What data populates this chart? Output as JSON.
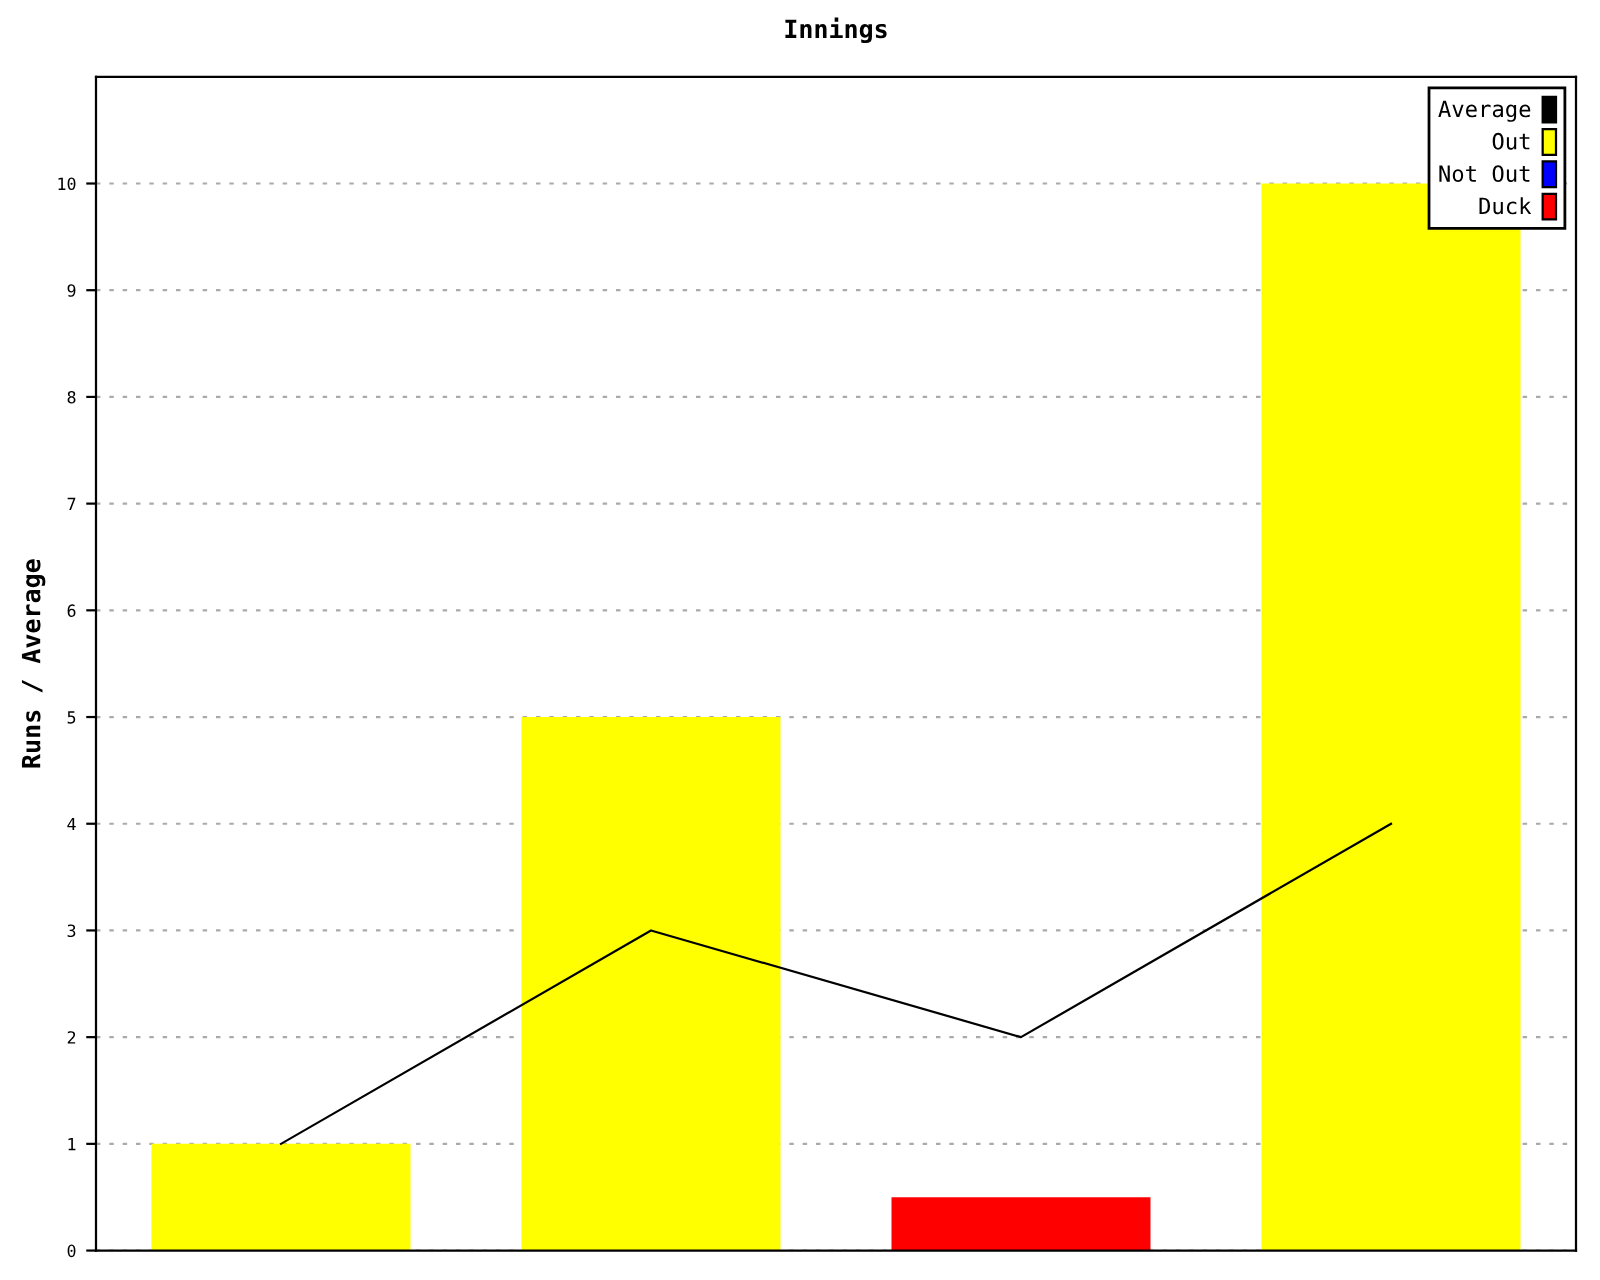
{
  "chart_data": {
    "type": "bar",
    "title": "Innings",
    "ylabel": "Runs / Average",
    "categories": [
      null,
      null,
      null,
      null
    ],
    "series": [
      {
        "name": "Average",
        "type": "line",
        "color": "#000000",
        "values": [
          1,
          3,
          2,
          4
        ]
      },
      {
        "name": "Out",
        "color": "#ffff00",
        "values": [
          1,
          5,
          null,
          10
        ]
      },
      {
        "name": "Not Out",
        "color": "#0000ff",
        "values": [
          null,
          null,
          null,
          null
        ]
      },
      {
        "name": "Duck",
        "color": "#ff0000",
        "values": [
          null,
          null,
          0.5,
          null
        ]
      }
    ],
    "ylim": [
      0,
      11
    ],
    "yticks": [
      0,
      1,
      2,
      3,
      4,
      5,
      6,
      7,
      8,
      9,
      10
    ],
    "grid": "y",
    "legend": "top right"
  }
}
